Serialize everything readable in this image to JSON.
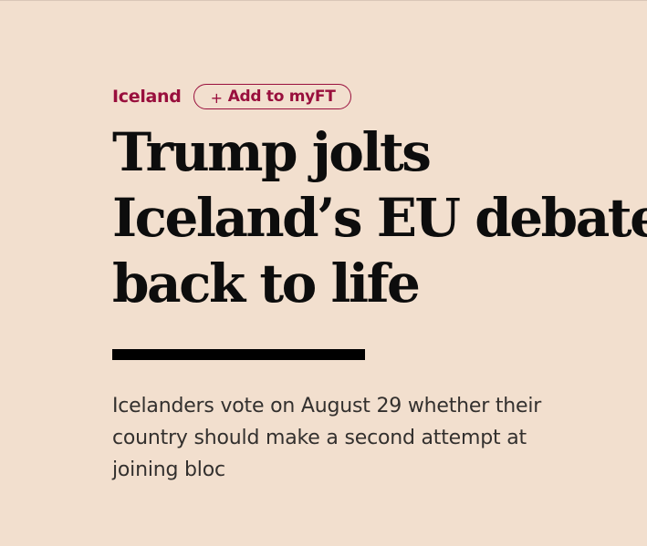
{
  "topic": {
    "label": "Iceland"
  },
  "myft_button": {
    "icon": "plus-icon",
    "plus": "+",
    "label": "Add to myFT"
  },
  "headline": {
    "lines": [
      "Trump jolts",
      "Iceland’s EU debate",
      "back to life"
    ]
  },
  "standfirst": {
    "lines": [
      "Icelanders vote on August 29 whether their",
      "country should make a second attempt at",
      "joining bloc"
    ]
  },
  "colors": {
    "background": "#f2dfce",
    "accent": "#990f3d",
    "headline": "#0d0d0d",
    "body_text": "#33302e"
  }
}
